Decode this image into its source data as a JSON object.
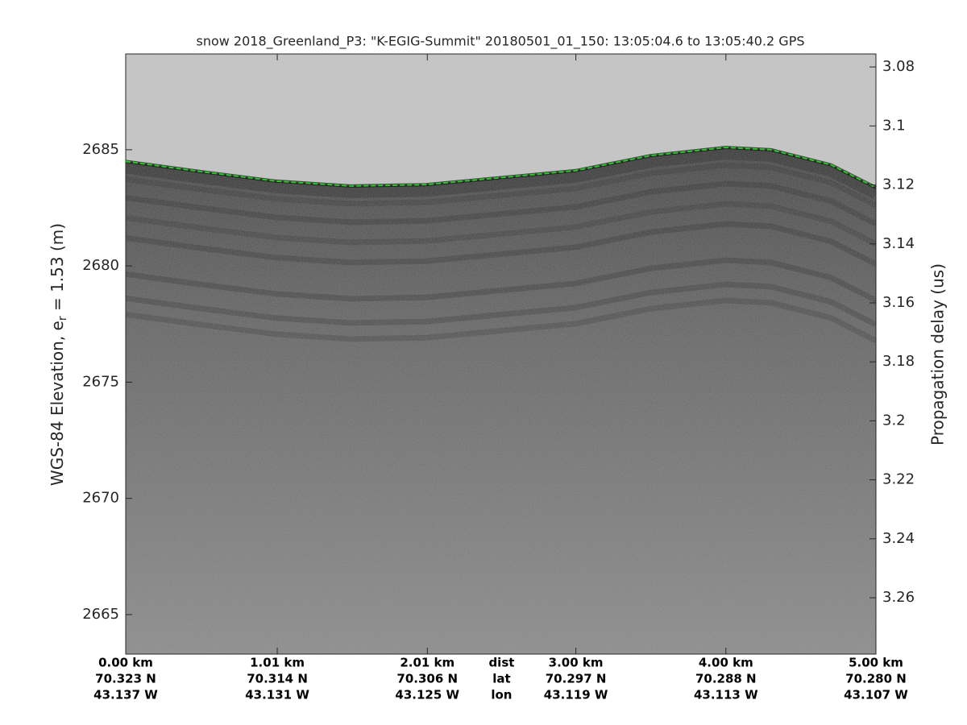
{
  "chart_data": {
    "type": "line",
    "title": "snow 2018_Greenland_P3: \"K-EGIG-Summit\"  20180501_01_150: 13:05:04.6 to 13:05:40.2 GPS",
    "ylabel": {
      "text": "WGS-84 Elevation, e",
      "subscript": "r",
      "suffix": " = 1.53 (m)"
    },
    "y2label": "Propagation delay (us)",
    "x": [
      0,
      0.5,
      1,
      1.5,
      2,
      2.5,
      3,
      3.5,
      4,
      4.3,
      4.7,
      5
    ],
    "values": [
      2684.5,
      2684.06,
      2683.65,
      2683.44,
      2683.5,
      2683.8,
      2684.1,
      2684.75,
      2685.1,
      2685.0,
      2684.35,
      2683.37
    ],
    "color": "#22cc22",
    "xlim": [
      0,
      5
    ],
    "xticks": [
      {
        "value": 0,
        "label": "0.00 km"
      },
      {
        "value": 1.01,
        "label": "1.01 km"
      },
      {
        "value": 2.01,
        "label": "2.01 km"
      },
      {
        "value": 3,
        "label": "3.00 km"
      },
      {
        "value": 4,
        "label": "4.00 km"
      },
      {
        "value": 5,
        "label": "5.00 km"
      }
    ],
    "xtick_lat": [
      "70.323 N",
      "70.314 N",
      "70.306 N",
      "70.297 N",
      "70.288 N",
      "70.280 N"
    ],
    "xtick_lon": [
      "43.137 W",
      "43.131 W",
      "43.125 W",
      "43.119 W",
      "43.113 W",
      "43.107 W"
    ],
    "x_row_labels": [
      "dist",
      "lat",
      "lon"
    ],
    "ylim": [
      2663.3,
      2689.12
    ],
    "yticks": [
      2665,
      2670,
      2675,
      2680,
      2685
    ],
    "y2lim": [
      3.2791,
      3.0756
    ],
    "y2ticks": [
      3.08,
      3.1,
      3.12,
      3.14,
      3.16,
      3.18,
      3.2,
      3.22,
      3.24,
      3.26
    ]
  }
}
